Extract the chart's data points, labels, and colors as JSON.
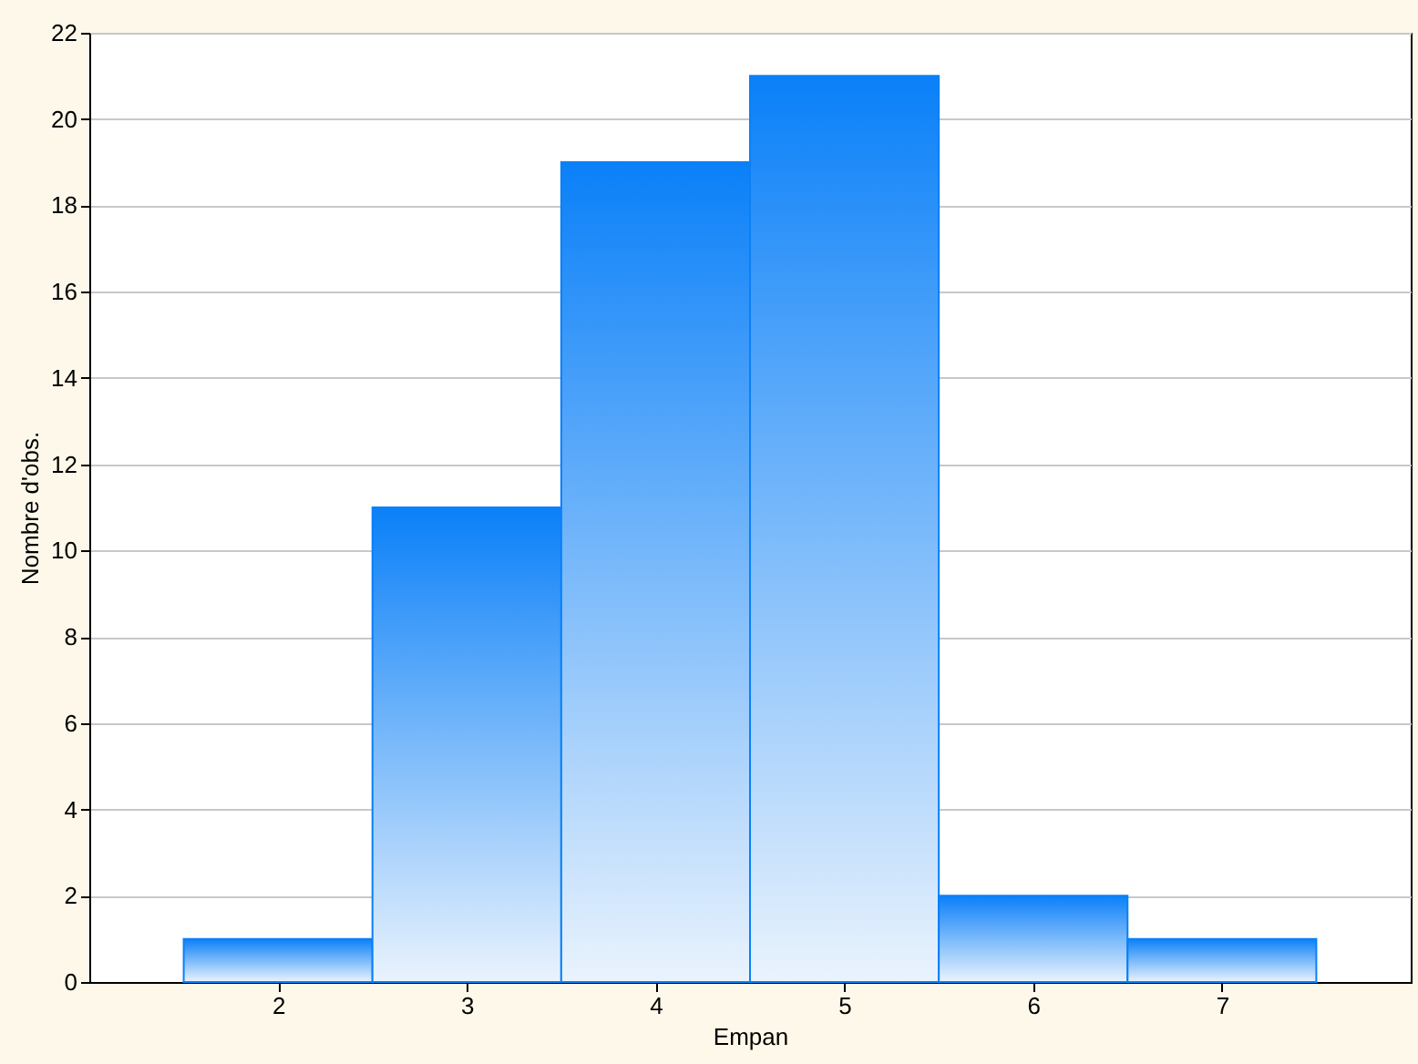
{
  "chart_data": {
    "type": "histogram",
    "xlabel": "Empan",
    "ylabel": "Nombre d'obs.",
    "bins": [
      1.5,
      2.5,
      3.5,
      4.5,
      5.5,
      6.5,
      7.5
    ],
    "values": [
      1,
      11,
      19,
      21,
      2,
      1
    ],
    "color": "#0a80f8",
    "xlim": [
      1,
      8
    ],
    "xticks": [
      2,
      3,
      4,
      5,
      6,
      7
    ],
    "ylim": [
      0,
      22
    ],
    "yticks": [
      0,
      2,
      4,
      6,
      8,
      10,
      12,
      14,
      16,
      18,
      20,
      22
    ],
    "grid": "y",
    "legend": false
  }
}
